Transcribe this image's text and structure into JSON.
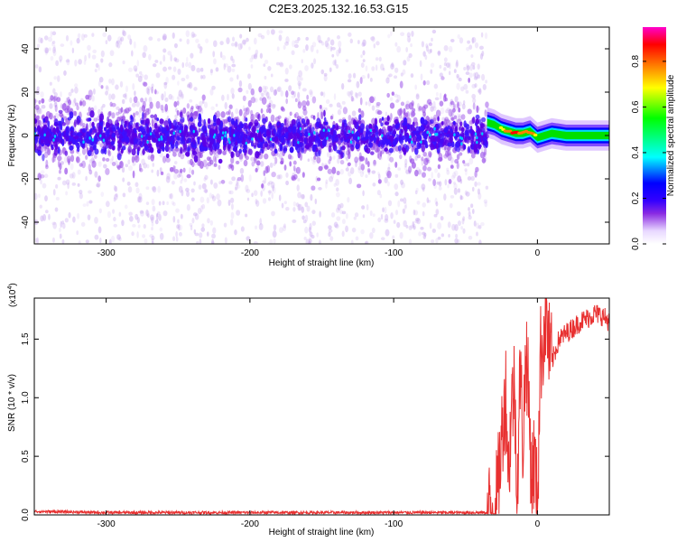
{
  "title": "C2E3.2025.132.16.53.G15",
  "chart_data": [
    {
      "type": "heatmap",
      "name": "spectrogram",
      "xlabel": "Height of straight line (km)",
      "ylabel": "Frequency (Hz)",
      "xlim": [
        -350,
        50
      ],
      "ylim": [
        -50,
        50
      ],
      "xticks": [
        -300,
        -200,
        -100,
        0
      ],
      "xtick_labels": [
        "-300",
        "-200",
        "-100",
        "0"
      ],
      "yticks": [
        -40,
        -20,
        0,
        20,
        40
      ],
      "ytick_labels": [
        "-40",
        "-20",
        "0",
        "20",
        "40"
      ],
      "noise_region": {
        "x_end": -35,
        "center_freq": 0,
        "dense_band": [
          -10,
          10
        ],
        "scatter_range": [
          -50,
          48
        ]
      },
      "signal_track": {
        "x": [
          -35,
          -30,
          -25,
          -20,
          -15,
          -10,
          -5,
          0,
          5,
          10,
          20,
          30,
          40,
          50
        ],
        "freq": [
          6,
          5,
          3,
          2,
          1,
          1,
          2,
          -1,
          0,
          1,
          0,
          0,
          0,
          0
        ],
        "amplitude": [
          0.55,
          0.6,
          0.75,
          0.85,
          0.9,
          0.8,
          0.85,
          0.7,
          0.65,
          0.6,
          0.55,
          0.5,
          0.5,
          0.5
        ]
      },
      "colorbar": {
        "label": "Normalized spectral amplitude",
        "range": [
          0.0,
          0.95
        ],
        "ticks": [
          0.0,
          0.2,
          0.4,
          0.6,
          0.8
        ],
        "tick_labels": [
          "0.0",
          "0.2",
          "0.4",
          "0.6",
          "0.8"
        ],
        "colormap": [
          "#ffffff",
          "#e8d8ff",
          "#8a2be2",
          "#3300ff",
          "#0000ff",
          "#00ffff",
          "#00ff00",
          "#ffff00",
          "#ff8000",
          "#ff0000",
          "#ff00cc"
        ]
      }
    },
    {
      "type": "line",
      "name": "snr",
      "xlabel": "Height of straight line (km)",
      "ylabel": "SNR (10 * v/v)",
      "y_multiplier_label": "(x10",
      "y_multiplier_exp": "4",
      "y_multiplier_close": ")",
      "xlim": [
        -350,
        50
      ],
      "ylim": [
        0,
        1.85
      ],
      "xticks": [
        -300,
        -200,
        -100,
        0
      ],
      "xtick_labels": [
        "-300",
        "-200",
        "-100",
        "0"
      ],
      "yticks": [
        0.0,
        0.5,
        1.0,
        1.5
      ],
      "ytick_labels": [
        "0.0",
        "0.5",
        "1.0",
        "1.5"
      ],
      "line_color": "#e83030",
      "series": [
        {
          "x": [
            -350,
            -300,
            -250,
            -200,
            -150,
            -100,
            -50,
            -35,
            -30,
            -28,
            -26,
            -24,
            -22,
            -20,
            -18,
            -16,
            -14,
            -12,
            -10,
            -8,
            -6,
            -4,
            -2,
            0,
            2,
            4,
            6,
            8,
            10,
            15,
            20,
            25,
            30,
            35,
            40,
            45,
            50
          ],
          "values": [
            0.03,
            0.02,
            0.02,
            0.02,
            0.02,
            0.02,
            0.02,
            0.02,
            0.04,
            0.15,
            0.45,
            0.8,
            1.05,
            0.35,
            0.95,
            1.1,
            0.2,
            1.25,
            0.6,
            1.45,
            0.95,
            0.3,
            0.5,
            0.05,
            1.35,
            1.5,
            1.75,
            1.4,
            1.3,
            1.5,
            1.55,
            1.6,
            1.65,
            1.68,
            1.72,
            1.7,
            1.65
          ]
        }
      ]
    }
  ]
}
